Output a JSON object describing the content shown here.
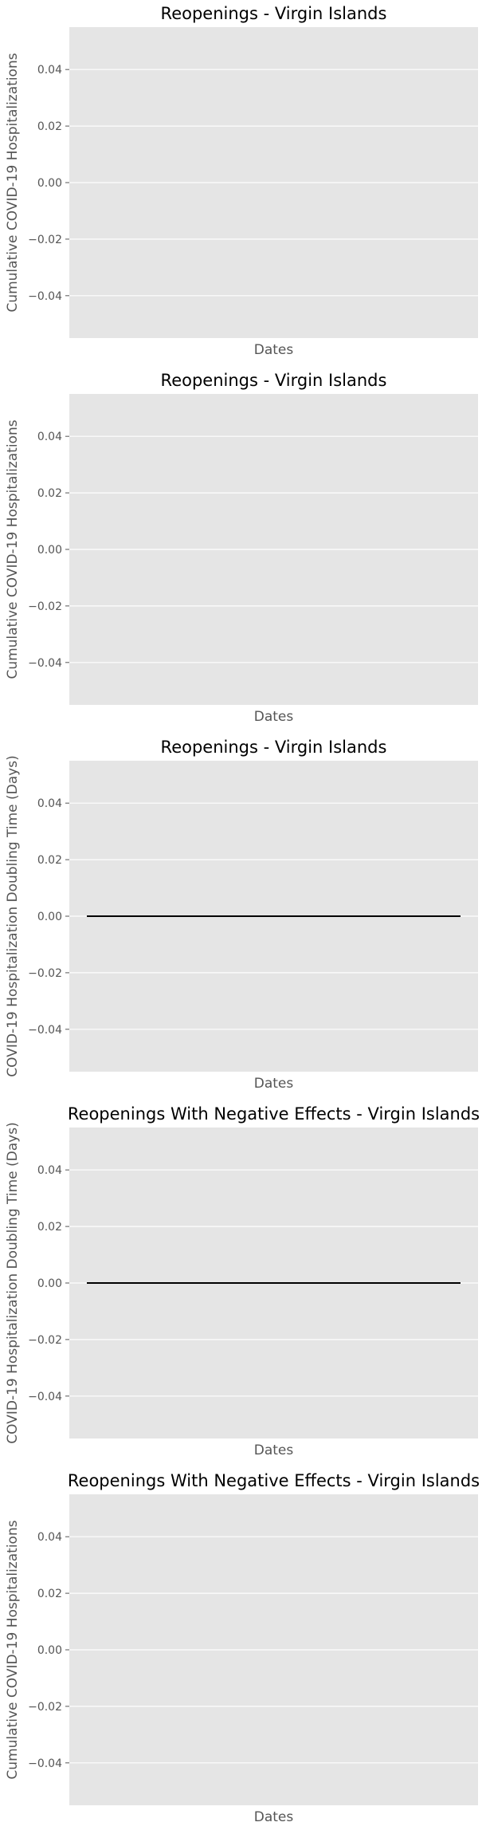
{
  "chart_data": [
    {
      "type": "line",
      "title": "Reopenings - Virgin Islands",
      "xlabel": "Dates",
      "ylabel": "Cumulative COVID-19 Hospitalizations",
      "ylim": [
        -0.055,
        0.055
      ],
      "yticks": [
        0.04,
        0.02,
        0.0,
        -0.02,
        -0.04
      ],
      "ytick_labels": [
        "0.04",
        "0.02",
        "0.00",
        "−0.02",
        "−0.04"
      ],
      "grid": true,
      "series": []
    },
    {
      "type": "line",
      "title": "Reopenings - Virgin Islands",
      "xlabel": "Dates",
      "ylabel": "Cumulative COVID-19 Hospitalizations",
      "ylim": [
        -0.055,
        0.055
      ],
      "yticks": [
        0.04,
        0.02,
        0.0,
        -0.02,
        -0.04
      ],
      "ytick_labels": [
        "0.04",
        "0.02",
        "0.00",
        "−0.02",
        "−0.04"
      ],
      "grid": true,
      "series": []
    },
    {
      "type": "line",
      "title": "Reopenings - Virgin Islands",
      "xlabel": "Dates",
      "ylabel": "COVID-19 Hospitalization Doubling Time (Days)",
      "ylim": [
        -0.055,
        0.055
      ],
      "yticks": [
        0.04,
        0.02,
        0.0,
        -0.02,
        -0.04
      ],
      "ytick_labels": [
        "0.04",
        "0.02",
        "0.00",
        "−0.02",
        "−0.04"
      ],
      "grid": true,
      "series": [
        {
          "color": "#000000",
          "x": [
            0,
            1
          ],
          "y": [
            0,
            0
          ]
        }
      ]
    },
    {
      "type": "line",
      "title": "Reopenings With Negative Effects - Virgin Islands",
      "xlabel": "Dates",
      "ylabel": "COVID-19 Hospitalization Doubling Time (Days)",
      "ylim": [
        -0.055,
        0.055
      ],
      "yticks": [
        0.04,
        0.02,
        0.0,
        -0.02,
        -0.04
      ],
      "ytick_labels": [
        "0.04",
        "0.02",
        "0.00",
        "−0.02",
        "−0.04"
      ],
      "grid": true,
      "series": [
        {
          "color": "#000000",
          "x": [
            0,
            1
          ],
          "y": [
            0,
            0
          ]
        }
      ]
    },
    {
      "type": "line",
      "title": "Reopenings With Negative Effects - Virgin Islands",
      "xlabel": "Dates",
      "ylabel": "Cumulative COVID-19 Hospitalizations",
      "ylim": [
        -0.055,
        0.055
      ],
      "yticks": [
        0.04,
        0.02,
        0.0,
        -0.02,
        -0.04
      ],
      "ytick_labels": [
        "0.04",
        "0.02",
        "0.00",
        "−0.02",
        "−0.04"
      ],
      "grid": true,
      "series": []
    }
  ]
}
